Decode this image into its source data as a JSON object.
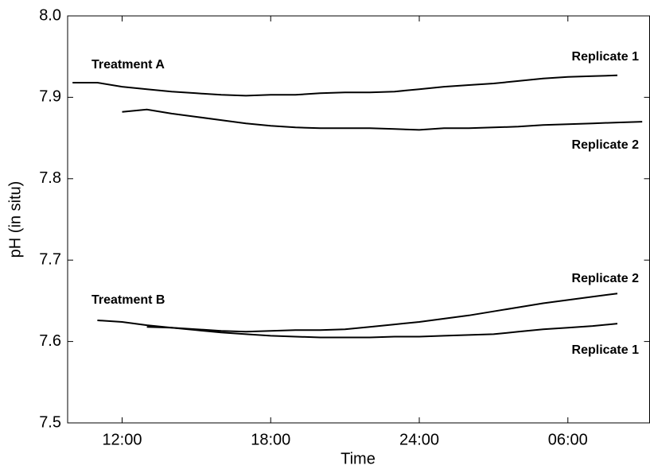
{
  "chart_data": {
    "type": "line",
    "xlabel": "Time",
    "ylabel": "pH (in situ)",
    "x": [
      10,
      11,
      12,
      13,
      14,
      15,
      16,
      17,
      18,
      19,
      20,
      21,
      22,
      23,
      24,
      25,
      26,
      27,
      28,
      29,
      30,
      31,
      32,
      33
    ],
    "series": [
      {
        "color": "#000000",
        "values": [
          7.918,
          7.918,
          7.913,
          7.91,
          7.907,
          7.905,
          7.903,
          7.902,
          7.903,
          7.903,
          7.905,
          7.906,
          7.906,
          7.907,
          7.91,
          7.913,
          7.915,
          7.917,
          7.92,
          7.923,
          7.925,
          7.926,
          7.927,
          null
        ]
      },
      {
        "color": "#000000",
        "values": [
          null,
          null,
          7.882,
          7.885,
          7.88,
          7.876,
          7.872,
          7.868,
          7.865,
          7.863,
          7.862,
          7.862,
          7.862,
          7.861,
          7.86,
          7.862,
          7.862,
          7.863,
          7.864,
          7.866,
          7.867,
          7.868,
          7.869,
          7.87
        ]
      },
      {
        "color": "#000000",
        "values": [
          null,
          7.626,
          7.624,
          7.62,
          7.617,
          7.614,
          7.611,
          7.609,
          7.607,
          7.606,
          7.605,
          7.605,
          7.605,
          7.606,
          7.606,
          7.607,
          7.608,
          7.609,
          7.612,
          7.615,
          7.617,
          7.619,
          7.622,
          null
        ]
      },
      {
        "color": "#000000",
        "values": [
          null,
          null,
          null,
          7.618,
          7.617,
          7.615,
          7.613,
          7.612,
          7.613,
          7.614,
          7.614,
          7.615,
          7.618,
          7.621,
          7.624,
          7.628,
          7.632,
          7.637,
          7.642,
          7.647,
          7.651,
          7.655,
          7.659,
          null
        ]
      }
    ],
    "annotations": [
      "Treatment A",
      "Replicate 1",
      "Replicate 2",
      "Treatment B",
      "Replicate 2",
      "Replicate 1"
    ],
    "xlim": [
      9.8,
      33.3
    ],
    "xticks": [
      {
        "value": 12,
        "label": "12:00"
      },
      {
        "value": 18,
        "label": "18:00"
      },
      {
        "value": 24,
        "label": "24:00"
      },
      {
        "value": 30,
        "label": "06:00"
      }
    ],
    "ylim": [
      7.5,
      8.0
    ],
    "yticks": [
      7.5,
      7.6,
      7.7,
      7.8,
      7.9,
      {
        "value": 8.0,
        "label": "8.0"
      }
    ],
    "grid": false
  }
}
